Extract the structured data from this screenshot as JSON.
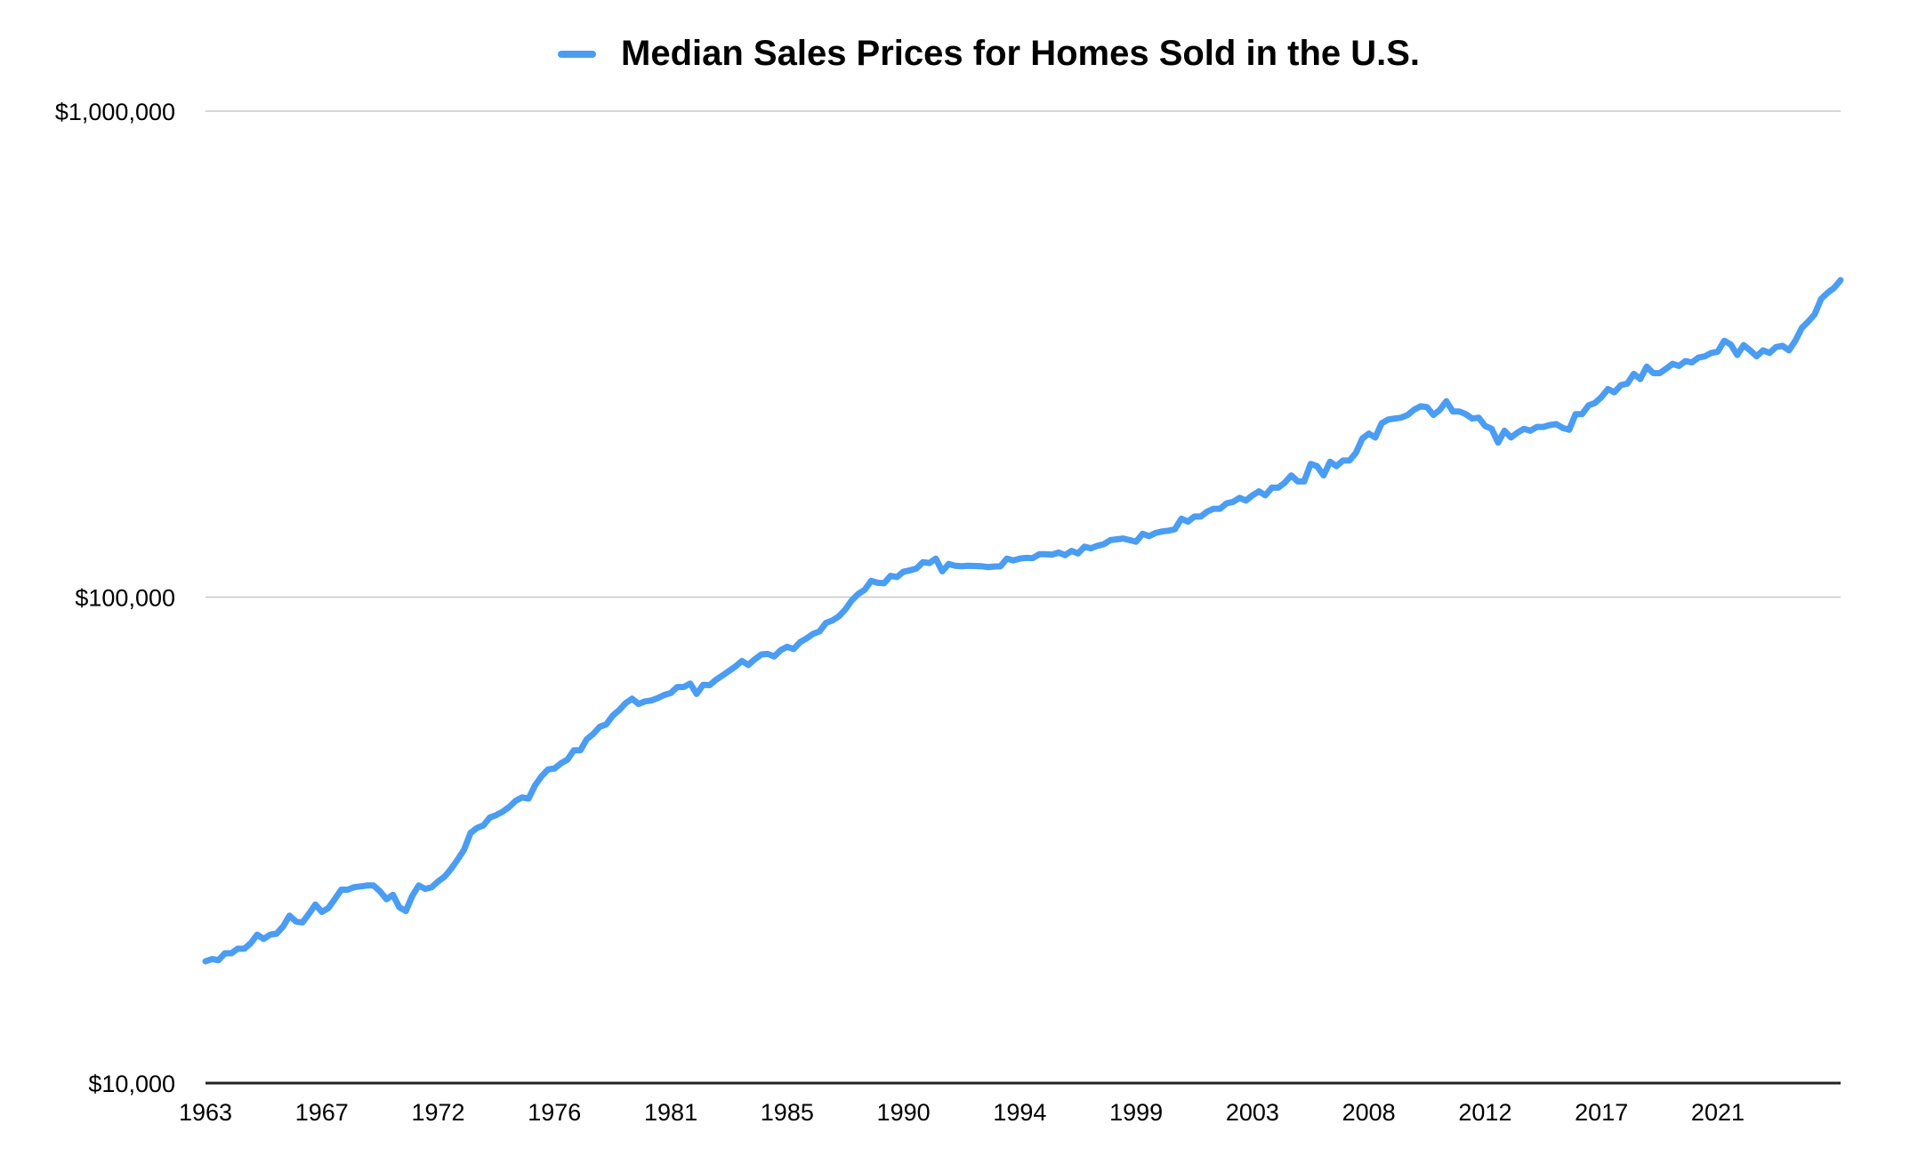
{
  "chart_data": {
    "type": "line",
    "title": "Median Sales Prices for Homes Sold in the U.S.",
    "xlabel": "",
    "ylabel": "",
    "y_scale": "log",
    "ylim": [
      10000,
      1000000
    ],
    "y_ticks": [
      10000,
      100000,
      1000000
    ],
    "y_tick_labels": [
      "$10,000",
      "$100,000",
      "$1,000,000"
    ],
    "x_range": [
      "1963 Q1",
      "2022 Q2"
    ],
    "x_frequency": "quarterly",
    "x_tick_labels": [
      "1963",
      "1967",
      "1972",
      "1976",
      "1981",
      "1985",
      "1990",
      "1994",
      "1999",
      "2003",
      "2008",
      "2012",
      "2017",
      "2021"
    ],
    "grid": true,
    "legend": "top",
    "color": "#4a9df2",
    "series": [
      {
        "name": "Median Sales Prices for Homes Sold in the U.S.",
        "start": "1963 Q1",
        "values": [
          17800,
          18000,
          17900,
          18500,
          18500,
          18900,
          18900,
          19400,
          20200,
          19800,
          20200,
          20300,
          21000,
          22100,
          21500,
          21400,
          22300,
          23300,
          22500,
          22900,
          23900,
          25000,
          25000,
          25300,
          25400,
          25500,
          25500,
          24800,
          23900,
          24400,
          23000,
          22600,
          24300,
          25500,
          25100,
          25300,
          26000,
          26600,
          27600,
          28800,
          30200,
          32700,
          33500,
          33900,
          35200,
          35600,
          36200,
          37000,
          38100,
          38700,
          38500,
          41000,
          42800,
          44200,
          44400,
          45500,
          46300,
          48400,
          48400,
          51000,
          52300,
          54100,
          54700,
          57000,
          58500,
          60500,
          61800,
          60300,
          61000,
          61300,
          62000,
          62900,
          63500,
          65300,
          65300,
          66400,
          63200,
          66000,
          65900,
          67600,
          69000,
          70500,
          72000,
          73900,
          72500,
          74500,
          76200,
          76400,
          75500,
          77800,
          79000,
          78200,
          80800,
          82200,
          84000,
          85000,
          88500,
          89500,
          91300,
          94300,
          98500,
          101500,
          103500,
          108000,
          107000,
          106800,
          110600,
          110000,
          112800,
          113500,
          114500,
          118000,
          117500,
          120000,
          113000,
          117000,
          116000,
          115800,
          116000,
          115900,
          115800,
          115300,
          115600,
          115700,
          120000,
          119000,
          120000,
          120400,
          120300,
          122500,
          122500,
          122300,
          123500,
          122000,
          124500,
          123000,
          127000,
          126000,
          127500,
          128500,
          131000,
          131500,
          132000,
          131000,
          130000,
          135000,
          133500,
          135500,
          136500,
          137000,
          138000,
          145000,
          143000,
          146500,
          146500,
          150000,
          152000,
          152000,
          156000,
          157000,
          160000,
          158000,
          162000,
          165000,
          162000,
          168000,
          168000,
          172000,
          178000,
          173000,
          173000,
          188000,
          186000,
          178000,
          190000,
          186000,
          191000,
          191000,
          198000,
          212000,
          217000,
          213000,
          228000,
          232000,
          233000,
          234000,
          237000,
          243000,
          247000,
          246000,
          237000,
          243000,
          253000,
          241000,
          241000,
          238000,
          233000,
          234000,
          225000,
          222000,
          208000,
          220000,
          213000,
          218000,
          222000,
          220000,
          224000,
          224000,
          226000,
          227000,
          223000,
          221000,
          238000,
          238000,
          248000,
          251000,
          258000,
          268000,
          264000,
          273000,
          275000,
          288000,
          281000,
          298000,
          289000,
          289000,
          295000,
          302000,
          299000,
          306000,
          304000,
          311000,
          313000,
          318000,
          320000,
          337000,
          331000,
          315000,
          330000,
          322000,
          313000,
          322000,
          318000,
          327000,
          329000,
          322000,
          337000,
          358000,
          369000,
          382000,
          411000,
          423000,
          433000,
          449000
        ]
      }
    ]
  }
}
